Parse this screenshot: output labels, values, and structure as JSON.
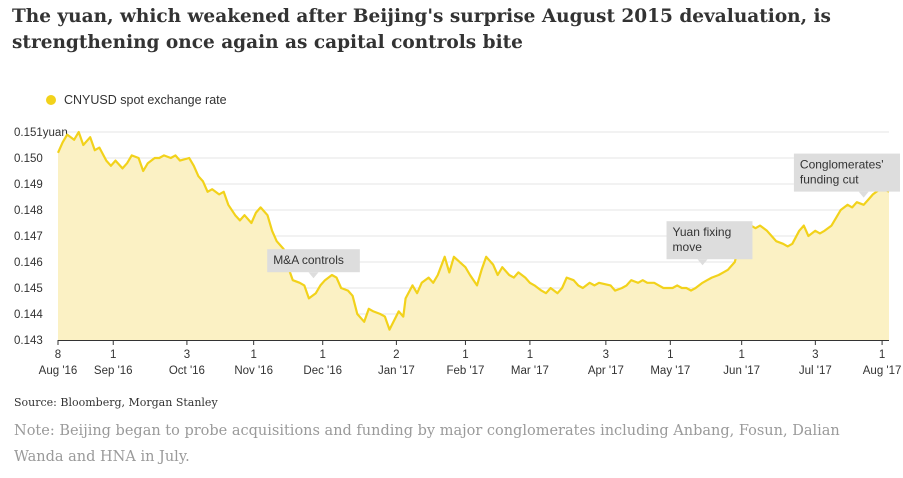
{
  "headline": "The yuan, which weakened after Beijing's surprise August 2015 devaluation, is strengthening once again as capital controls bite",
  "legend": {
    "label": "CNYUSD spot exchange rate",
    "color": "#f2d21b"
  },
  "source": "Source: Bloomberg, Morgan Stanley",
  "note": "Note: Beijing began to probe acquisitions and funding by major conglomerates including Anbang, Fosun, Dalian Wanda and HNA in July.",
  "colors": {
    "line": "#f2d21b",
    "area": "#fbf1c4",
    "grid": "#e6e6e6",
    "annotation_bg": "#dddddd"
  },
  "chart_data": {
    "type": "area",
    "title": "The yuan, which weakened after Beijing's surprise August 2015 devaluation, is strengthening once again as capital controls bite",
    "ylabel": "yuan",
    "xlim": [
      "2016-08-08",
      "2017-08-04"
    ],
    "ylim": [
      0.143,
      0.151
    ],
    "yticks": [
      {
        "value": 0.151,
        "label": "0.151yuan"
      },
      {
        "value": 0.15,
        "label": "0.150"
      },
      {
        "value": 0.149,
        "label": "0.149"
      },
      {
        "value": 0.148,
        "label": "0.148"
      },
      {
        "value": 0.147,
        "label": "0.147"
      },
      {
        "value": 0.146,
        "label": "0.146"
      },
      {
        "value": 0.145,
        "label": "0.145"
      },
      {
        "value": 0.144,
        "label": "0.144"
      },
      {
        "value": 0.143,
        "label": "0.143"
      }
    ],
    "xticks": [
      {
        "date": "2016-08-08",
        "day": "8",
        "month": "Aug '16"
      },
      {
        "date": "2016-09-01",
        "day": "1",
        "month": "Sep '16"
      },
      {
        "date": "2016-10-03",
        "day": "3",
        "month": "Oct '16"
      },
      {
        "date": "2016-11-01",
        "day": "1",
        "month": "Nov '16"
      },
      {
        "date": "2016-12-01",
        "day": "1",
        "month": "Dec '16"
      },
      {
        "date": "2017-01-02",
        "day": "2",
        "month": "Jan '17"
      },
      {
        "date": "2017-02-01",
        "day": "1",
        "month": "Feb '17"
      },
      {
        "date": "2017-03-01",
        "day": "1",
        "month": "Mar '17"
      },
      {
        "date": "2017-04-03",
        "day": "3",
        "month": "Apr '17"
      },
      {
        "date": "2017-05-01",
        "day": "1",
        "month": "May '17"
      },
      {
        "date": "2017-06-01",
        "day": "1",
        "month": "Jun '17"
      },
      {
        "date": "2017-07-03",
        "day": "3",
        "month": "Jul '17"
      },
      {
        "date": "2017-08-01",
        "day": "1",
        "month": "Aug '17"
      }
    ],
    "series": [
      {
        "name": "CNYUSD spot exchange rate",
        "points": [
          [
            "2016-08-08",
            0.1502
          ],
          [
            "2016-08-10",
            0.1506
          ],
          [
            "2016-08-12",
            0.1509
          ],
          [
            "2016-08-15",
            0.1507
          ],
          [
            "2016-08-17",
            0.151
          ],
          [
            "2016-08-19",
            0.1505
          ],
          [
            "2016-08-22",
            0.1508
          ],
          [
            "2016-08-24",
            0.1503
          ],
          [
            "2016-08-26",
            0.1504
          ],
          [
            "2016-08-29",
            0.1499
          ],
          [
            "2016-08-31",
            0.1497
          ],
          [
            "2016-09-02",
            0.1499
          ],
          [
            "2016-09-05",
            0.1496
          ],
          [
            "2016-09-07",
            0.1498
          ],
          [
            "2016-09-09",
            0.1501
          ],
          [
            "2016-09-12",
            0.15
          ],
          [
            "2016-09-14",
            0.1495
          ],
          [
            "2016-09-16",
            0.1498
          ],
          [
            "2016-09-19",
            0.15
          ],
          [
            "2016-09-21",
            0.15
          ],
          [
            "2016-09-23",
            0.1501
          ],
          [
            "2016-09-26",
            0.15
          ],
          [
            "2016-09-28",
            0.1501
          ],
          [
            "2016-09-30",
            0.1499
          ],
          [
            "2016-10-04",
            0.15
          ],
          [
            "2016-10-06",
            0.1497
          ],
          [
            "2016-10-08",
            0.1493
          ],
          [
            "2016-10-10",
            0.1491
          ],
          [
            "2016-10-12",
            0.1487
          ],
          [
            "2016-10-14",
            0.1488
          ],
          [
            "2016-10-17",
            0.1486
          ],
          [
            "2016-10-19",
            0.1487
          ],
          [
            "2016-10-21",
            0.1482
          ],
          [
            "2016-10-24",
            0.1478
          ],
          [
            "2016-10-26",
            0.1476
          ],
          [
            "2016-10-28",
            0.1478
          ],
          [
            "2016-10-31",
            0.1475
          ],
          [
            "2016-11-02",
            0.1479
          ],
          [
            "2016-11-04",
            0.1481
          ],
          [
            "2016-11-07",
            0.1478
          ],
          [
            "2016-11-09",
            0.1472
          ],
          [
            "2016-11-11",
            0.1468
          ],
          [
            "2016-11-14",
            0.1465
          ],
          [
            "2016-11-16",
            0.1458
          ],
          [
            "2016-11-18",
            0.1453
          ],
          [
            "2016-11-21",
            0.1452
          ],
          [
            "2016-11-23",
            0.1451
          ],
          [
            "2016-11-25",
            0.1446
          ],
          [
            "2016-11-28",
            0.1448
          ],
          [
            "2016-11-30",
            0.1451
          ],
          [
            "2016-12-02",
            0.1453
          ],
          [
            "2016-12-05",
            0.1455
          ],
          [
            "2016-12-07",
            0.1454
          ],
          [
            "2016-12-09",
            0.145
          ],
          [
            "2016-12-12",
            0.1449
          ],
          [
            "2016-12-14",
            0.1447
          ],
          [
            "2016-12-16",
            0.144
          ],
          [
            "2016-12-19",
            0.1437
          ],
          [
            "2016-12-21",
            0.1442
          ],
          [
            "2016-12-23",
            0.1441
          ],
          [
            "2016-12-26",
            0.144
          ],
          [
            "2016-12-28",
            0.1439
          ],
          [
            "2016-12-30",
            0.1434
          ],
          [
            "2017-01-03",
            0.1441
          ],
          [
            "2017-01-05",
            0.1439
          ],
          [
            "2017-01-06",
            0.1446
          ],
          [
            "2017-01-09",
            0.1451
          ],
          [
            "2017-01-11",
            0.1448
          ],
          [
            "2017-01-13",
            0.1452
          ],
          [
            "2017-01-16",
            0.1454
          ],
          [
            "2017-01-18",
            0.1452
          ],
          [
            "2017-01-20",
            0.1455
          ],
          [
            "2017-01-23",
            0.1462
          ],
          [
            "2017-01-25",
            0.1456
          ],
          [
            "2017-01-27",
            0.1462
          ],
          [
            "2017-02-01",
            0.1458
          ],
          [
            "2017-02-03",
            0.1455
          ],
          [
            "2017-02-06",
            0.1451
          ],
          [
            "2017-02-08",
            0.1457
          ],
          [
            "2017-02-10",
            0.1462
          ],
          [
            "2017-02-13",
            0.1459
          ],
          [
            "2017-02-15",
            0.1455
          ],
          [
            "2017-02-17",
            0.1458
          ],
          [
            "2017-02-20",
            0.1455
          ],
          [
            "2017-02-22",
            0.1454
          ],
          [
            "2017-02-24",
            0.1456
          ],
          [
            "2017-02-27",
            0.1454
          ],
          [
            "2017-03-01",
            0.1452
          ],
          [
            "2017-03-03",
            0.1451
          ],
          [
            "2017-03-06",
            0.1449
          ],
          [
            "2017-03-08",
            0.1448
          ],
          [
            "2017-03-10",
            0.145
          ],
          [
            "2017-03-13",
            0.1448
          ],
          [
            "2017-03-15",
            0.145
          ],
          [
            "2017-03-17",
            0.1454
          ],
          [
            "2017-03-20",
            0.1453
          ],
          [
            "2017-03-22",
            0.1451
          ],
          [
            "2017-03-24",
            0.145
          ],
          [
            "2017-03-27",
            0.1452
          ],
          [
            "2017-03-29",
            0.1451
          ],
          [
            "2017-03-31",
            0.1452
          ],
          [
            "2017-04-05",
            0.1451
          ],
          [
            "2017-04-07",
            0.1449
          ],
          [
            "2017-04-10",
            0.145
          ],
          [
            "2017-04-12",
            0.1451
          ],
          [
            "2017-04-14",
            0.1453
          ],
          [
            "2017-04-17",
            0.1452
          ],
          [
            "2017-04-19",
            0.1453
          ],
          [
            "2017-04-21",
            0.1452
          ],
          [
            "2017-04-24",
            0.1452
          ],
          [
            "2017-04-26",
            0.1451
          ],
          [
            "2017-04-28",
            0.145
          ],
          [
            "2017-05-02",
            0.145
          ],
          [
            "2017-05-04",
            0.1451
          ],
          [
            "2017-05-06",
            0.145
          ],
          [
            "2017-05-08",
            0.145
          ],
          [
            "2017-05-10",
            0.1449
          ],
          [
            "2017-05-12",
            0.145
          ],
          [
            "2017-05-15",
            0.1452
          ],
          [
            "2017-05-17",
            0.1453
          ],
          [
            "2017-05-19",
            0.1454
          ],
          [
            "2017-05-22",
            0.1455
          ],
          [
            "2017-05-24",
            0.1456
          ],
          [
            "2017-05-26",
            0.1457
          ],
          [
            "2017-05-29",
            0.146
          ],
          [
            "2017-05-31",
            0.1467
          ],
          [
            "2017-06-02",
            0.1472
          ],
          [
            "2017-06-05",
            0.1474
          ],
          [
            "2017-06-07",
            0.1473
          ],
          [
            "2017-06-09",
            0.1474
          ],
          [
            "2017-06-12",
            0.1472
          ],
          [
            "2017-06-14",
            0.147
          ],
          [
            "2017-06-16",
            0.1468
          ],
          [
            "2017-06-19",
            0.1467
          ],
          [
            "2017-06-21",
            0.1466
          ],
          [
            "2017-06-23",
            0.1467
          ],
          [
            "2017-06-26",
            0.1472
          ],
          [
            "2017-06-28",
            0.1474
          ],
          [
            "2017-06-30",
            0.147
          ],
          [
            "2017-07-03",
            0.1472
          ],
          [
            "2017-07-05",
            0.1471
          ],
          [
            "2017-07-07",
            0.1472
          ],
          [
            "2017-07-10",
            0.1474
          ],
          [
            "2017-07-12",
            0.1477
          ],
          [
            "2017-07-14",
            0.148
          ],
          [
            "2017-07-17",
            0.1482
          ],
          [
            "2017-07-19",
            0.1481
          ],
          [
            "2017-07-21",
            0.1483
          ],
          [
            "2017-07-24",
            0.1482
          ],
          [
            "2017-07-26",
            0.1484
          ],
          [
            "2017-07-28",
            0.1486
          ],
          [
            "2017-07-31",
            0.1488
          ],
          [
            "2017-08-02",
            0.1488
          ],
          [
            "2017-08-04",
            0.1487
          ]
        ]
      }
    ],
    "annotations": [
      {
        "label": "M&A controls",
        "date": "2016-11-27",
        "value": 0.1453,
        "align": "center"
      },
      {
        "label": "Yuan fixing move",
        "date": "2017-05-15",
        "value": 0.1458,
        "align": "left"
      },
      {
        "label": "Conglomerates' funding cut",
        "date": "2017-07-24",
        "value": 0.1484,
        "align": "left"
      }
    ],
    "grid": true,
    "legend_position": "top-left"
  }
}
